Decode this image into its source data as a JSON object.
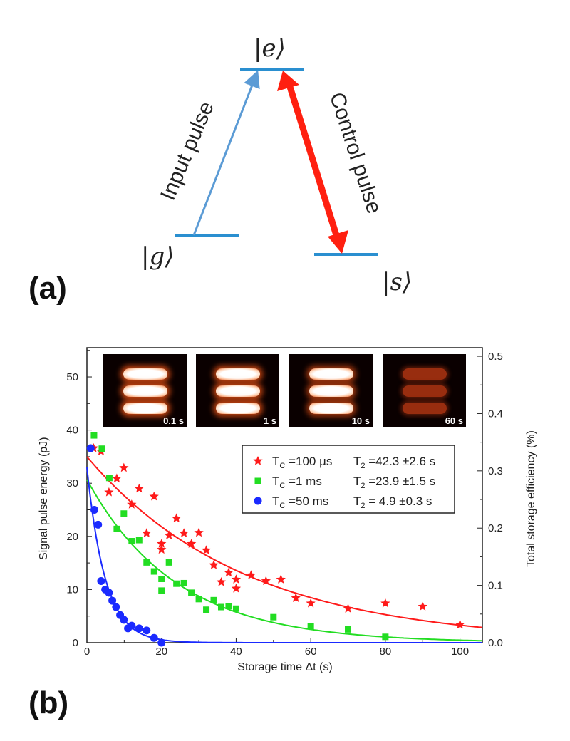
{
  "panel_a": {
    "label": "(a)",
    "levels": {
      "e": "|e⟩",
      "g": "|g⟩",
      "s": "|s⟩"
    },
    "input_pulse": "Input pulse",
    "control_pulse": "Control pulse",
    "colors": {
      "levels": "#2a8fd0",
      "input_arrow": "#5b9bd5",
      "control_arrow": "#ff2010"
    }
  },
  "panel_b": {
    "label": "(b)",
    "insets": [
      {
        "label": "0.1 s",
        "brightness": 1.0
      },
      {
        "label": "1 s",
        "brightness": 0.95
      },
      {
        "label": "10 s",
        "brightness": 0.8
      },
      {
        "label": "60 s",
        "brightness": 0.35
      }
    ]
  },
  "chart_data": {
    "type": "scatter",
    "xlabel": "Storage time Δt (s)",
    "ylabel": "Signal pulse energy (pJ)",
    "ylabel_right": "Total storage efficiency (%)",
    "xlim": [
      0,
      106
    ],
    "ylim": [
      0,
      55.5
    ],
    "ylim_right": [
      0,
      0.515
    ],
    "xticks": [
      "0",
      "20",
      "40",
      "60",
      "80",
      "100"
    ],
    "yticks": [
      "0",
      "10",
      "20",
      "30",
      "40",
      "50"
    ],
    "yticks_right": [
      "0.0",
      "0.1",
      "0.2",
      "0.3",
      "0.4",
      "0.5"
    ],
    "grid": false,
    "legend_position": "right-middle",
    "series": [
      {
        "tc": "=100 µs",
        "t2": "=42.3 ±2.6 s",
        "marker": "star",
        "color": "#ff1a1a",
        "fit": {
          "amplitude": 35,
          "tau": 42.3
        },
        "x": [
          1.8,
          3.8,
          5.9,
          8,
          9.9,
          12,
          14,
          16,
          18,
          20,
          20,
          22,
          24,
          26,
          28,
          30,
          32,
          34,
          36,
          38,
          40,
          40,
          44,
          48,
          52,
          56,
          60,
          70,
          80,
          90,
          100
        ],
        "y": [
          36.6,
          36,
          28.3,
          30.9,
          32.9,
          26,
          29,
          20.6,
          27.5,
          18.6,
          17.5,
          20.2,
          23.4,
          20.6,
          18.6,
          20.7,
          17.4,
          14.6,
          11.4,
          13.2,
          11.9,
          10.2,
          12.7,
          11.6,
          11.9,
          8.4,
          7.4,
          6.4,
          7.4,
          6.8,
          3.4
        ]
      },
      {
        "tc": "=1 ms",
        "t2": "=23.9 ±1.5 s",
        "marker": "square",
        "color": "#22dd22",
        "fit": {
          "amplitude": 30.7,
          "tau": 23.9
        },
        "x": [
          1.9,
          4,
          6,
          8,
          9.9,
          12,
          14,
          16,
          18,
          20,
          20,
          22,
          24,
          26,
          28,
          30,
          32,
          34,
          36,
          38,
          40,
          50,
          60,
          70,
          80
        ],
        "y": [
          39,
          36.5,
          31,
          21.4,
          24.3,
          19.1,
          19.3,
          15.1,
          13.4,
          12,
          9.8,
          15.1,
          11.1,
          11.2,
          9.4,
          8.2,
          6.2,
          8,
          6.7,
          6.9,
          6.4,
          4.8,
          3.1,
          2.5,
          1.1
        ]
      },
      {
        "tc": "=50 ms",
        "t2": "=  4.9 ±0.3 s",
        "marker": "circle",
        "color": "#1a2aff",
        "fit": {
          "amplitude": 33,
          "tau": 4.9
        },
        "x": [
          1,
          2,
          3,
          3.8,
          4.9,
          5.9,
          6.8,
          7.8,
          8.9,
          9.9,
          11,
          12,
          14,
          16,
          18,
          20
        ],
        "y": [
          36.6,
          25,
          22.2,
          11.6,
          10,
          9.4,
          7.9,
          6.7,
          5.2,
          4.3,
          2.7,
          3.2,
          2.7,
          2.3,
          0.9,
          0
        ]
      }
    ]
  }
}
